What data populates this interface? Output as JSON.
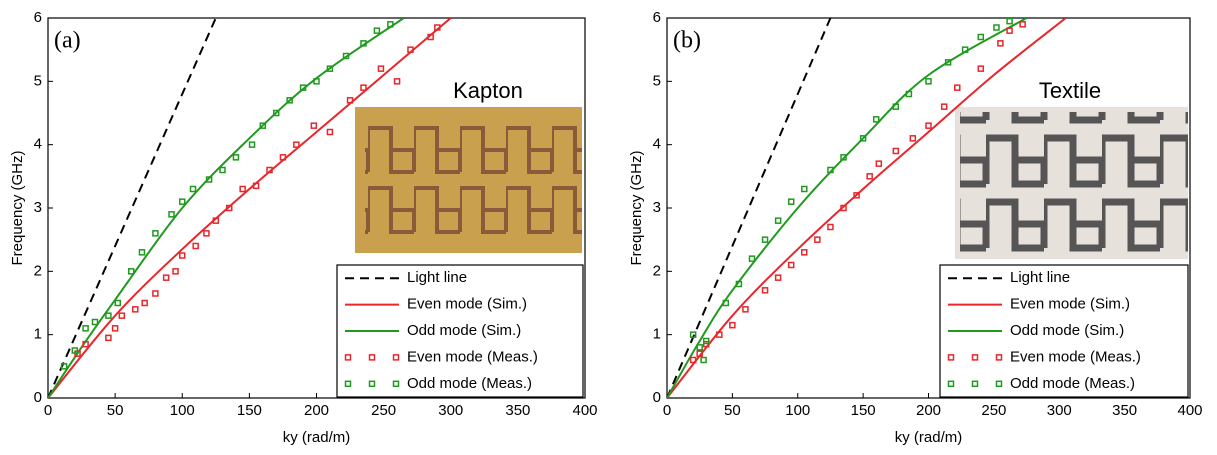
{
  "chart_data": [
    {
      "type": "line",
      "panel_label": "(a)",
      "inset_label": "Kapton",
      "ylabel": "Frequency (GHz)",
      "xlabel": "ky (rad/m)",
      "xlim": [
        0,
        400
      ],
      "ylim": [
        0,
        6
      ],
      "xticks": [
        0,
        50,
        100,
        150,
        200,
        250,
        300,
        350,
        400
      ],
      "yticks": [
        0,
        1,
        2,
        3,
        4,
        5,
        6
      ],
      "series": [
        {
          "name": "Light line",
          "color": "#000000",
          "style": "dashed",
          "x": [
            0,
            125
          ],
          "values": [
            0,
            6
          ]
        },
        {
          "name": "Even mode (Sim.)",
          "color": "#e8262b",
          "style": "solid",
          "x": [
            0,
            50,
            100,
            150,
            200,
            250,
            300
          ],
          "values": [
            0,
            1.3,
            2.35,
            3.3,
            4.2,
            5.1,
            6
          ]
        },
        {
          "name": "Odd mode (Sim.)",
          "color": "#1f9a1f",
          "style": "solid",
          "x": [
            0,
            25,
            50,
            100,
            150,
            200,
            265
          ],
          "values": [
            0,
            0.8,
            1.55,
            3.0,
            4.1,
            5.05,
            6
          ]
        },
        {
          "name": "Even mode (Meas.)",
          "color": "#e8262b",
          "style": "markers",
          "x": [
            22,
            28,
            45,
            50,
            55,
            65,
            72,
            80,
            88,
            95,
            100,
            110,
            118,
            125,
            135,
            145,
            155,
            165,
            175,
            185,
            198,
            210,
            225,
            235,
            248,
            260,
            270,
            285,
            290
          ],
          "values": [
            0.7,
            0.85,
            0.95,
            1.1,
            1.3,
            1.4,
            1.5,
            1.65,
            1.9,
            2.0,
            2.25,
            2.4,
            2.6,
            2.8,
            3.0,
            3.3,
            3.35,
            3.6,
            3.8,
            4.0,
            4.3,
            4.2,
            4.7,
            4.9,
            5.2,
            5.0,
            5.5,
            5.7,
            5.85
          ]
        },
        {
          "name": "Odd mode (Meas.)",
          "color": "#1f9a1f",
          "style": "markers",
          "x": [
            12,
            20,
            28,
            35,
            45,
            52,
            62,
            70,
            80,
            92,
            100,
            108,
            120,
            130,
            140,
            152,
            160,
            170,
            180,
            190,
            200,
            210,
            222,
            235,
            245,
            255
          ],
          "values": [
            0.5,
            0.75,
            1.1,
            1.2,
            1.3,
            1.5,
            2.0,
            2.3,
            2.6,
            2.9,
            3.1,
            3.3,
            3.45,
            3.6,
            3.8,
            4.0,
            4.3,
            4.5,
            4.7,
            4.9,
            5.0,
            5.2,
            5.4,
            5.6,
            5.8,
            5.9
          ]
        }
      ]
    },
    {
      "type": "line",
      "panel_label": "(b)",
      "inset_label": "Textile",
      "ylabel": "Frequency (GHz)",
      "xlabel": "ky (rad/m)",
      "xlim": [
        0,
        400
      ],
      "ylim": [
        0,
        6
      ],
      "xticks": [
        0,
        50,
        100,
        150,
        200,
        250,
        300,
        350,
        400
      ],
      "yticks": [
        0,
        1,
        2,
        3,
        4,
        5,
        6
      ],
      "series": [
        {
          "name": "Light line",
          "color": "#000000",
          "style": "dashed",
          "x": [
            0,
            125
          ],
          "values": [
            0,
            6
          ]
        },
        {
          "name": "Even mode (Sim.)",
          "color": "#e8262b",
          "style": "solid",
          "x": [
            0,
            50,
            100,
            150,
            200,
            250,
            305
          ],
          "values": [
            0,
            1.3,
            2.35,
            3.3,
            4.2,
            5.1,
            6
          ]
        },
        {
          "name": "Odd mode (Sim.)",
          "color": "#1f9a1f",
          "style": "solid",
          "x": [
            0,
            25,
            50,
            100,
            150,
            200,
            275
          ],
          "values": [
            0,
            0.9,
            1.7,
            3.0,
            4.1,
            5.1,
            6
          ]
        },
        {
          "name": "Even mode (Meas.)",
          "color": "#e8262b",
          "style": "markers",
          "x": [
            20,
            25,
            30,
            40,
            50,
            60,
            75,
            85,
            95,
            105,
            115,
            125,
            135,
            145,
            155,
            162,
            175,
            188,
            200,
            212,
            222,
            240,
            255,
            262,
            272
          ],
          "values": [
            0.6,
            0.7,
            0.85,
            1.0,
            1.15,
            1.4,
            1.7,
            1.9,
            2.1,
            2.3,
            2.5,
            2.7,
            3.0,
            3.2,
            3.5,
            3.7,
            3.9,
            4.1,
            4.3,
            4.6,
            4.9,
            5.2,
            5.6,
            5.8,
            5.9
          ]
        },
        {
          "name": "Odd mode (Meas.)",
          "color": "#1f9a1f",
          "style": "markers",
          "x": [
            20,
            25,
            28,
            30,
            45,
            55,
            65,
            75,
            85,
            95,
            105,
            125,
            135,
            150,
            160,
            175,
            185,
            200,
            215,
            228,
            240,
            252,
            262
          ],
          "values": [
            1.0,
            0.8,
            0.6,
            0.9,
            1.5,
            1.8,
            2.2,
            2.5,
            2.8,
            3.1,
            3.3,
            3.6,
            3.8,
            4.1,
            4.4,
            4.6,
            4.8,
            5.0,
            5.3,
            5.5,
            5.7,
            5.85,
            5.95
          ]
        }
      ]
    }
  ]
}
